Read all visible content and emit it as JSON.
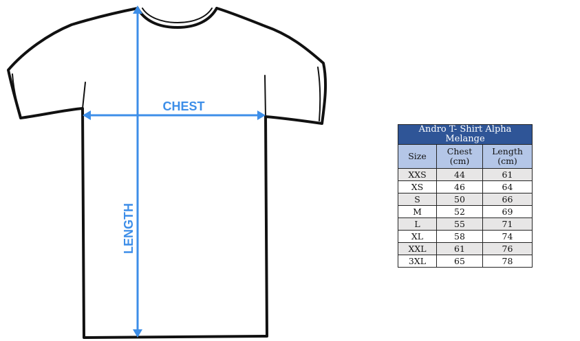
{
  "diagram": {
    "chest_label": "CHEST",
    "length_label": "LENGTH",
    "arrow_color": "#3d8ee8"
  },
  "table": {
    "title": "Andro T- Shirt Alpha Melange",
    "headers": [
      "Size",
      "Chest (cm)",
      "Length (cm)"
    ],
    "rows": [
      [
        "XXS",
        "44",
        "61"
      ],
      [
        "XS",
        "46",
        "64"
      ],
      [
        "S",
        "50",
        "66"
      ],
      [
        "M",
        "52",
        "69"
      ],
      [
        "L",
        "55",
        "71"
      ],
      [
        "XL",
        "58",
        "74"
      ],
      [
        "XXL",
        "61",
        "76"
      ],
      [
        "3XL",
        "65",
        "78"
      ]
    ],
    "title_color": "#2f5597",
    "header_color": "#b4c6e7"
  }
}
